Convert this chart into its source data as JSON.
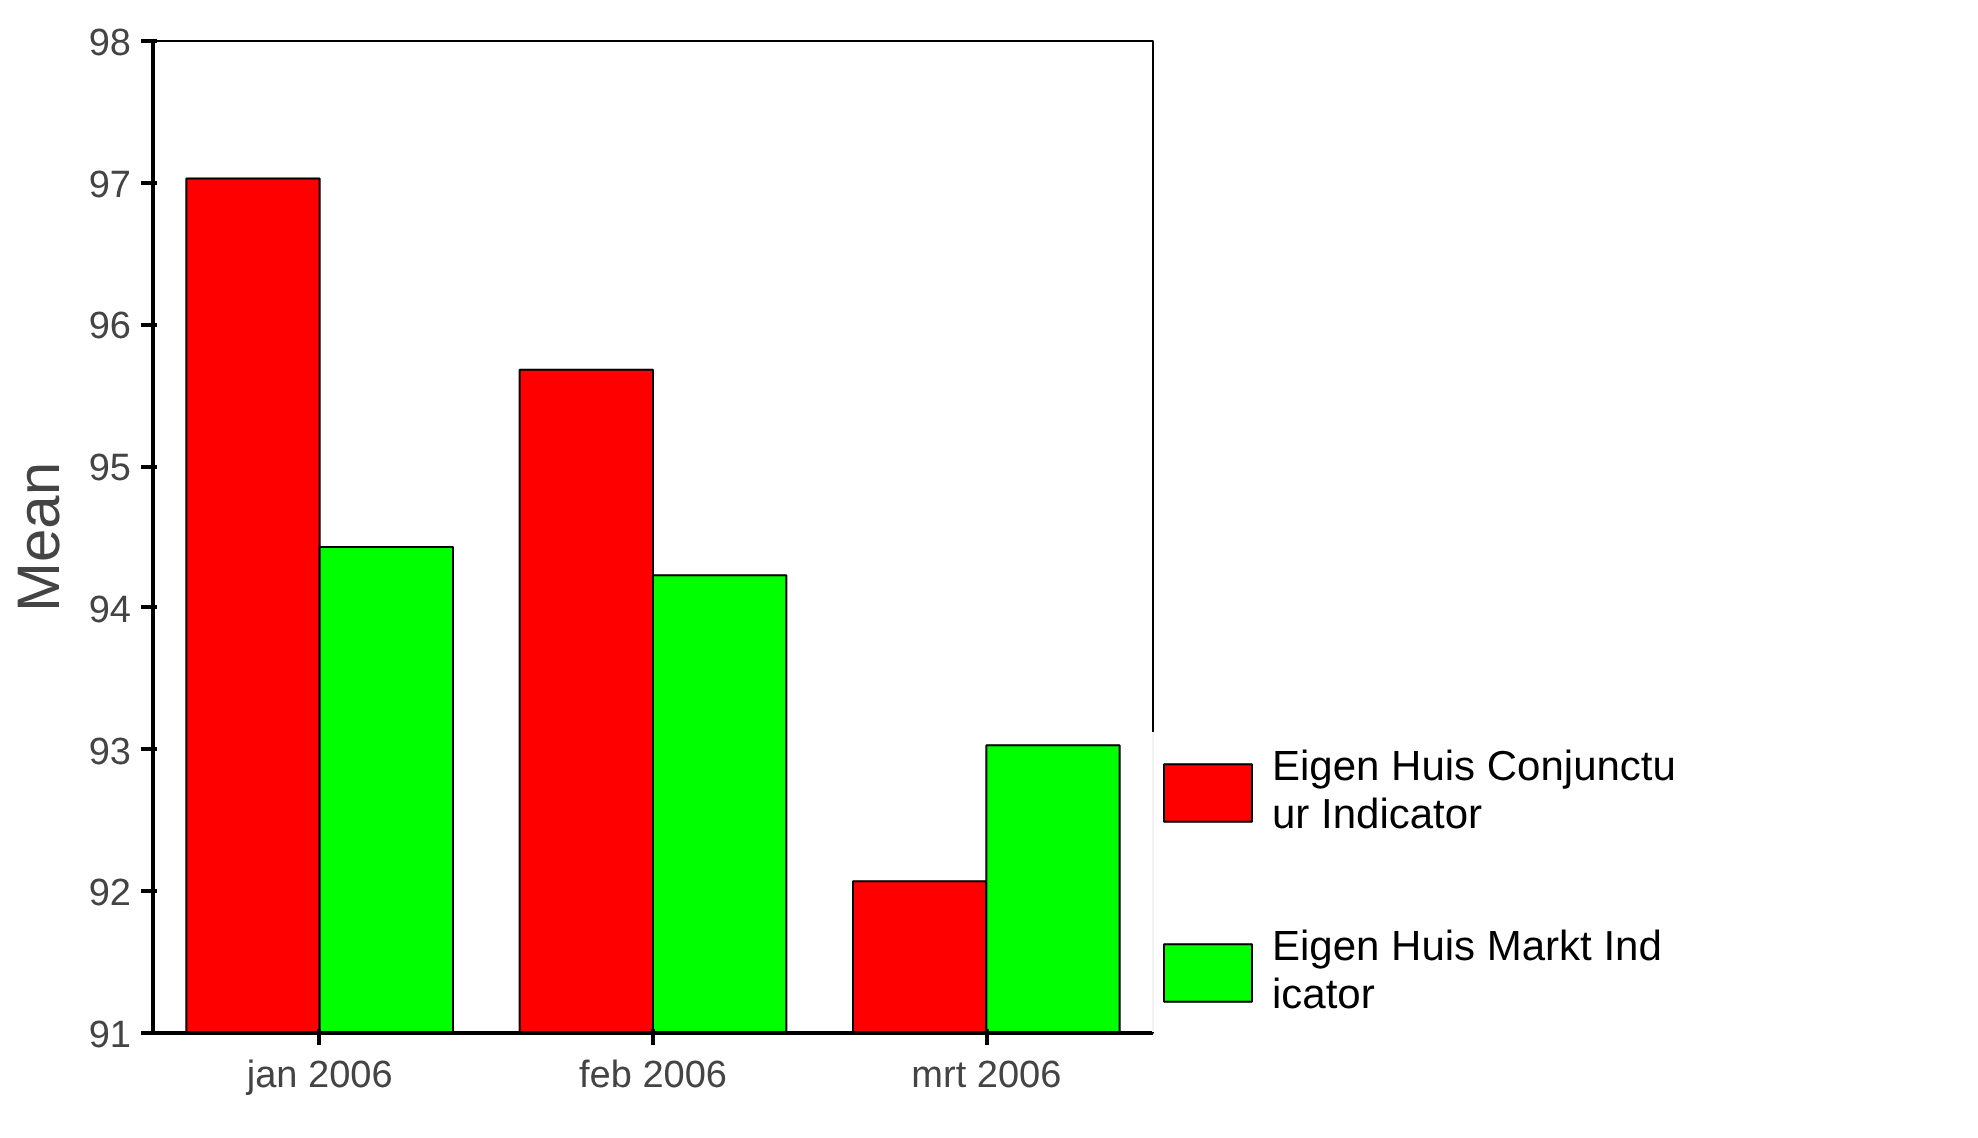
{
  "chart_data": {
    "type": "bar",
    "ylabel": "Mean",
    "categories": [
      "jan 2006",
      "feb 2006",
      "mrt 2006"
    ],
    "series": [
      {
        "name": "Eigen Huis Conjunctu\nur Indicator",
        "color": "#ff0000",
        "values": [
          97.03,
          95.68,
          92.07
        ]
      },
      {
        "name": "Eigen Huis Markt Ind\nicator",
        "color": "#00ff00",
        "values": [
          94.43,
          94.23,
          93.03
        ]
      }
    ],
    "ylim": [
      91,
      98
    ],
    "yticks": [
      91,
      92,
      93,
      94,
      95,
      96,
      97,
      98
    ],
    "grid": false,
    "legend": "right"
  }
}
